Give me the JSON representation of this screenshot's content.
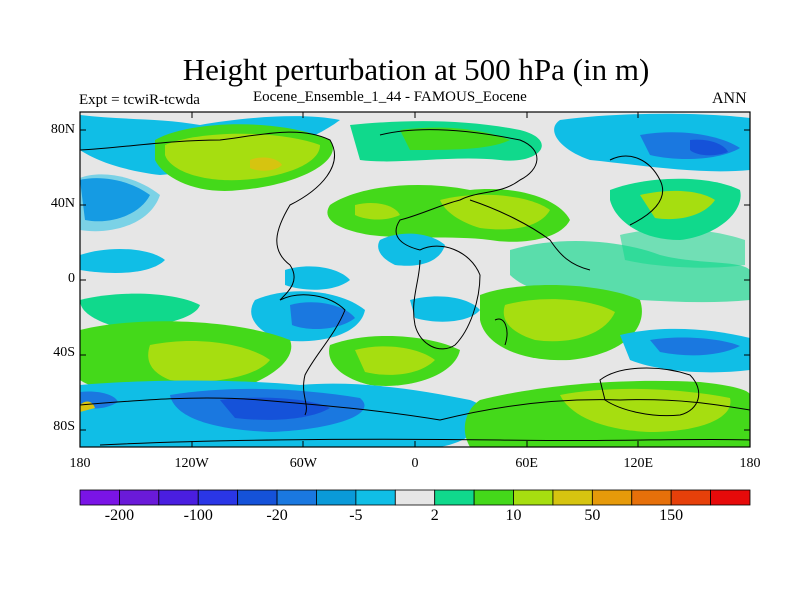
{
  "header": {
    "title": "Height perturbation at 500 hPa (in m)",
    "left_label": "Expt = tcwiR-tcwda",
    "center_label": "Eocene_Ensemble_1_44 - FAMOUS_Eocene",
    "right_label": "ANN"
  },
  "map": {
    "projection": "cylindrical-equidistant",
    "lon_range": [
      -180,
      180
    ],
    "lat_range": [
      -90,
      90
    ],
    "lat_ticks": [
      {
        "lat": 80,
        "label": "80N"
      },
      {
        "lat": 40,
        "label": "40N"
      },
      {
        "lat": 0,
        "label": "0"
      },
      {
        "lat": -40,
        "label": "40S"
      },
      {
        "lat": -80,
        "label": "80S"
      }
    ],
    "lon_ticks": [
      {
        "lon": -180,
        "label": "180"
      },
      {
        "lon": -120,
        "label": "120W"
      },
      {
        "lon": -60,
        "label": "60W"
      },
      {
        "lon": 0,
        "label": "0"
      },
      {
        "lon": 60,
        "label": "60E"
      },
      {
        "lon": 120,
        "label": "120E"
      },
      {
        "lon": 180,
        "label": "180"
      }
    ]
  },
  "colorbar": {
    "colors": [
      "#7a14e6",
      "#6a1ad9",
      "#4a1ee0",
      "#2a36e6",
      "#1552d9",
      "#1a78e0",
      "#0a9ad9",
      "#10bee6",
      "#e6e6e6",
      "#10d98c",
      "#44d91a",
      "#a6de10",
      "#d6c410",
      "#e69a0a",
      "#e6700a",
      "#e6400a",
      "#e60a0a"
    ],
    "labels": [
      {
        "index": 1,
        "text": "-200"
      },
      {
        "index": 3,
        "text": "-100"
      },
      {
        "index": 5,
        "text": "-20"
      },
      {
        "index": 7,
        "text": "-5"
      },
      {
        "index": 9,
        "text": "2"
      },
      {
        "index": 11,
        "text": "10"
      },
      {
        "index": 13,
        "text": "50"
      },
      {
        "index": 15,
        "text": "150"
      }
    ]
  }
}
